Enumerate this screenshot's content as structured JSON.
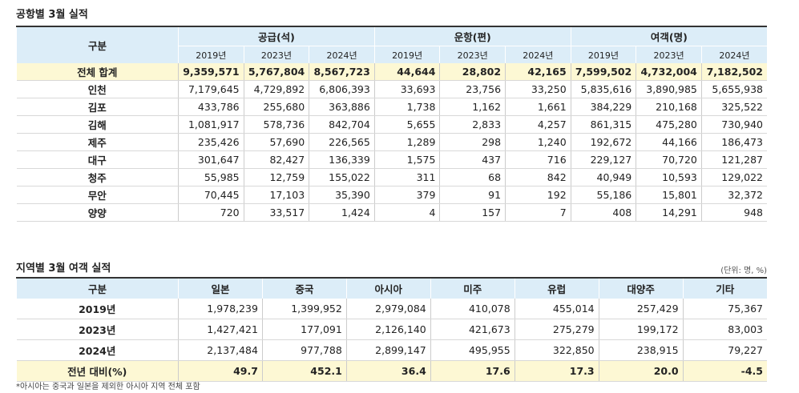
{
  "title1": "공항별 3월 실적",
  "table1": {
    "header": "구분",
    "groups": [
      {
        "name": "공급(석)",
        "years": [
          "2019년",
          "2023년",
          "2024년"
        ]
      },
      {
        "name": "운항(편)",
        "years": [
          "2019년",
          "2023년",
          "2024년"
        ]
      },
      {
        "name": "여객(명)",
        "years": [
          "2019년",
          "2023년",
          "2024년"
        ]
      }
    ],
    "rows": [
      {
        "label": "전체 합계",
        "cells": [
          "9,359,571",
          "5,767,804",
          "8,567,723",
          "44,644",
          "28,802",
          "42,165",
          "7,599,502",
          "4,732,004",
          "7,182,502"
        ]
      },
      {
        "label": "인천",
        "cells": [
          "7,179,645",
          "4,729,892",
          "6,806,393",
          "33,693",
          "23,756",
          "33,250",
          "5,835,616",
          "3,890,985",
          "5,655,938"
        ]
      },
      {
        "label": "김포",
        "cells": [
          "433,786",
          "255,680",
          "363,886",
          "1,738",
          "1,162",
          "1,661",
          "384,229",
          "210,168",
          "325,522"
        ]
      },
      {
        "label": "김해",
        "cells": [
          "1,081,917",
          "578,736",
          "842,704",
          "5,655",
          "2,833",
          "4,257",
          "861,315",
          "475,280",
          "730,940"
        ]
      },
      {
        "label": "제주",
        "cells": [
          "235,426",
          "57,690",
          "226,565",
          "1,289",
          "298",
          "1,240",
          "192,672",
          "44,166",
          "186,473"
        ]
      },
      {
        "label": "대구",
        "cells": [
          "301,647",
          "82,427",
          "136,339",
          "1,575",
          "437",
          "716",
          "229,127",
          "70,720",
          "121,287"
        ]
      },
      {
        "label": "청주",
        "cells": [
          "55,985",
          "12,759",
          "155,022",
          "311",
          "68",
          "842",
          "40,949",
          "10,593",
          "129,022"
        ]
      },
      {
        "label": "무안",
        "cells": [
          "70,445",
          "17,103",
          "35,390",
          "379",
          "91",
          "192",
          "55,186",
          "15,801",
          "32,372"
        ]
      },
      {
        "label": "양양",
        "cells": [
          "720",
          "33,517",
          "1,424",
          "4",
          "157",
          "7",
          "408",
          "14,291",
          "948"
        ]
      }
    ]
  },
  "title2": "지역별 3월 여객 실적",
  "unit2": "(단위: 명, %)",
  "table2": {
    "header": [
      "구분",
      "일본",
      "중국",
      "아시아",
      "미주",
      "유럽",
      "대양주",
      "기타"
    ],
    "rows": [
      {
        "label": "2019년",
        "cells": [
          "1,978,239",
          "1,399,952",
          "2,979,084",
          "410,078",
          "455,014",
          "257,429",
          "75,367"
        ]
      },
      {
        "label": "2023년",
        "cells": [
          "1,427,421",
          "177,091",
          "2,126,140",
          "421,673",
          "275,279",
          "199,172",
          "83,003"
        ]
      },
      {
        "label": "2024년",
        "cells": [
          "2,137,484",
          "977,788",
          "2,899,147",
          "495,955",
          "322,850",
          "238,915",
          "79,227"
        ]
      },
      {
        "label": "전년 대비(%)",
        "cells": [
          "49.7",
          "452.1",
          "36.4",
          "17.6",
          "17.3",
          "20.0",
          "-4.5"
        ]
      }
    ]
  },
  "footnote": "*아시아는 중국과 일본을 제외한 아시아 지역 전체 포함"
}
